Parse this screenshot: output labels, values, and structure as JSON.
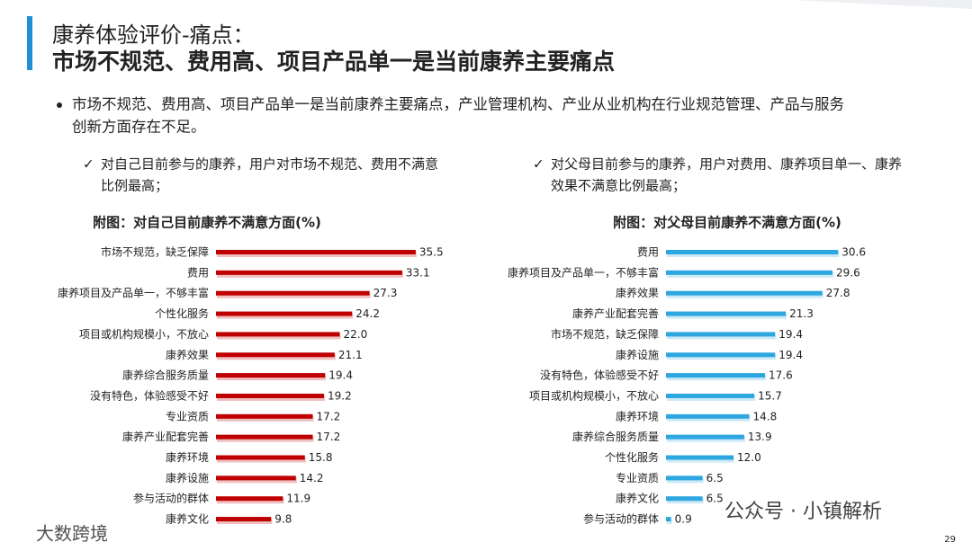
{
  "slide": {
    "title": "康养体验评价-痛点：",
    "subtitle": "市场不规范、费用高、项目产品单一是当前康养主要痛点",
    "bullet": [
      "市场不规范、费用高、项目产品单一是当前康养主要痛点，产业管理机构、产业从业机构在行业规范管理、产品与服务",
      "创新方面存在不足。"
    ],
    "page_number": "29",
    "watermark": "公众号 · 小镇解析",
    "logo_text": "大数跨境"
  },
  "chart_data": [
    {
      "type": "bar",
      "orientation": "horizontal",
      "color": "#c00000",
      "note": [
        "对自己目前参与的康养，用户对市场不规范、费用不满意",
        "比例最高；"
      ],
      "title": "附图：对自己目前康养不满意方面(%)",
      "categories": [
        "市场不规范，缺乏保障",
        "费用",
        "康养项目及产品单一，不够丰富",
        "个性化服务",
        "项目或机构规模小，不放心",
        "康养效果",
        "康养综合服务质量",
        "没有特色，体验感受不好",
        "专业资质",
        "康养产业配套完善",
        "康养环境",
        "康养设施",
        "参与活动的群体",
        "康养文化"
      ],
      "values": [
        35.5,
        33.1,
        27.3,
        24.2,
        22.0,
        21.1,
        19.4,
        19.2,
        17.2,
        17.2,
        15.8,
        14.2,
        11.9,
        9.8
      ],
      "value_labels": [
        "35.5",
        "33.1",
        "27.3",
        "24.2",
        "22.0",
        "21.1",
        "19.4",
        "19.2",
        "17.2",
        "17.2",
        "15.8",
        "14.2",
        "11.9",
        "9.8"
      ]
    },
    {
      "type": "bar",
      "orientation": "horizontal",
      "color": "#2ea7e0",
      "note": [
        "对父母目前参与的康养，用户对费用、康养项目单一、康养",
        "效果不满意比例最高；"
      ],
      "title": "附图：对父母目前康养不满意方面(%)",
      "categories": [
        "费用",
        "康养项目及产品单一，不够丰富",
        "康养效果",
        "康养产业配套完善",
        "市场不规范，缺乏保障",
        "康养设施",
        "没有特色，体验感受不好",
        "项目或机构规模小，不放心",
        "康养环境",
        "康养综合服务质量",
        "个性化服务",
        "专业资质",
        "康养文化",
        "参与活动的群体"
      ],
      "values": [
        30.6,
        29.6,
        27.8,
        21.3,
        19.4,
        19.4,
        17.6,
        15.7,
        14.8,
        13.9,
        12.0,
        6.5,
        6.5,
        0.9
      ],
      "value_labels": [
        "30.6",
        "29.6",
        "27.8",
        "21.3",
        "19.4",
        "19.4",
        "17.6",
        "15.7",
        "14.8",
        "13.9",
        "12.0",
        "6.5",
        "6.5",
        "0.9"
      ]
    }
  ]
}
